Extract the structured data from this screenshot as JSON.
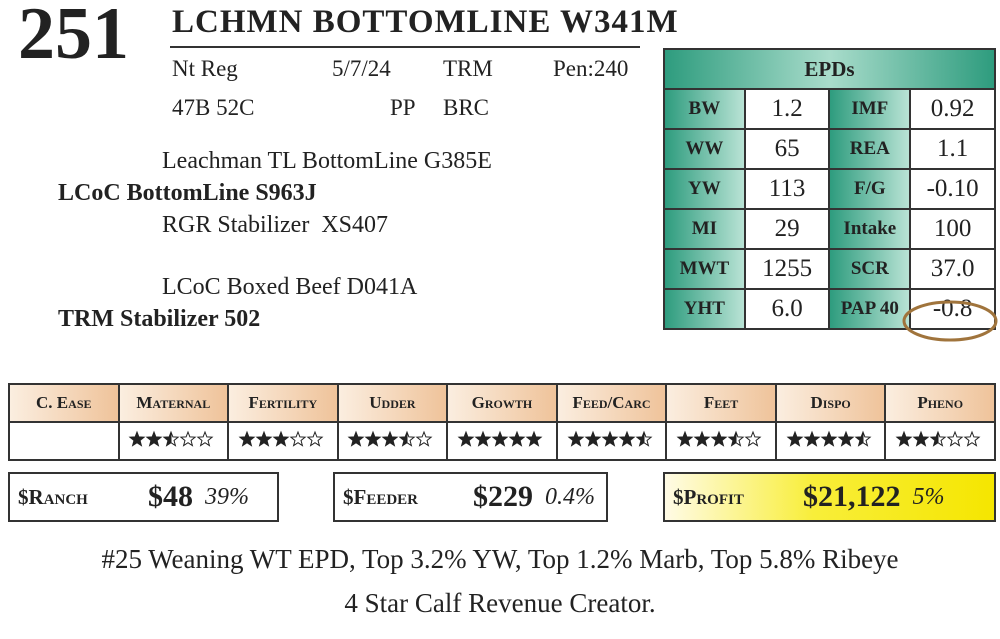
{
  "lot": "251",
  "name": "LCHMN BOTTOMLINE W341M",
  "info": {
    "row1": [
      "Nt Reg",
      "5/7/24",
      "TRM",
      "Pen:240"
    ],
    "row2": [
      "47B 52C",
      "PP",
      "BRC"
    ]
  },
  "pedigree": {
    "sire_sire": "Leachman TL BottomLine G385E",
    "sire": "LCoC BottomLine S963J",
    "sire_dam": "RGR Stabilizer  XS407",
    "dam_sire": "LCoC Boxed Beef D041A",
    "dam": "TRM Stabilizer 502"
  },
  "epds": {
    "title": "EPDs",
    "rows": [
      [
        "BW",
        "1.2",
        "IMF",
        "0.92"
      ],
      [
        "WW",
        "65",
        "REA",
        "1.1"
      ],
      [
        "YW",
        "113",
        "F/G",
        "-0.10"
      ],
      [
        "MI",
        "29",
        "Intake",
        "100"
      ],
      [
        "MWT",
        "1255",
        "SCR",
        "37.0"
      ],
      [
        "YHT",
        "6.0",
        "PAP 40",
        "-0.8"
      ]
    ]
  },
  "ratings": {
    "headers": [
      "C. Ease",
      "Maternal",
      "Fertility",
      "Udder",
      "Growth",
      "Feed/Carc",
      "Feet",
      "Dispo",
      "Pheno"
    ],
    "stars": [
      null,
      2.5,
      3,
      3.5,
      5,
      4.5,
      3.5,
      4.5,
      2.5
    ]
  },
  "indexes": [
    {
      "label": "$Ranch",
      "value": "$48",
      "percent": "39%"
    },
    {
      "label": "$Feeder",
      "value": "$229",
      "percent": "0.4%"
    },
    {
      "label": "$Profit",
      "value": "$21,122",
      "percent": "5%"
    }
  ],
  "notes": [
    "#25 Weaning WT EPD, Top 3.2% YW, Top 1.2% Marb, Top 5.8% Ribeye",
    "4 Star Calf Revenue Creator."
  ]
}
